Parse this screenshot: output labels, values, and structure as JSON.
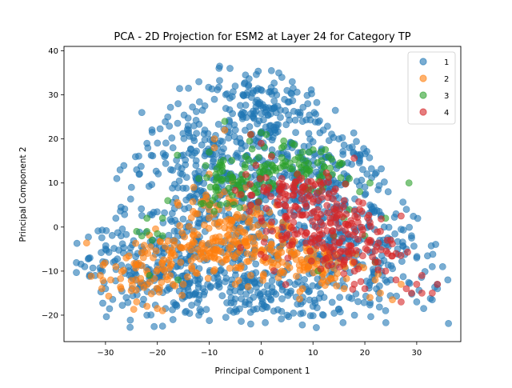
{
  "chart_data": {
    "type": "scatter",
    "title": "PCA - 2D Projection for ESM2 at Layer 24 for Category TP",
    "xlabel": "Principal Component 1",
    "ylabel": "Principal Component 2",
    "xlim": [
      -38,
      38.5
    ],
    "ylim": [
      -26,
      41
    ],
    "xticks": [
      -30,
      -20,
      -10,
      0,
      10,
      20,
      30
    ],
    "xtick_labels": [
      "−30",
      "−20",
      "−10",
      "0",
      "10",
      "20",
      "30"
    ],
    "yticks": [
      -20,
      -10,
      0,
      10,
      20,
      30,
      40
    ],
    "ytick_labels": [
      "−20",
      "−10",
      "0",
      "10",
      "20",
      "30",
      "40"
    ],
    "grid": false,
    "legend_position": "top-right",
    "series": [
      {
        "name": "1",
        "color": "#1f77b4",
        "blobs": [
          {
            "cx": -2,
            "cy": 0,
            "sx": 14,
            "sy": 11,
            "n": 560
          },
          {
            "cx": 0,
            "cy": 26,
            "sx": 6,
            "sy": 5,
            "n": 160
          },
          {
            "cx": -22,
            "cy": -10,
            "sx": 7,
            "sy": 5,
            "n": 140
          },
          {
            "cx": 20,
            "cy": -6,
            "sx": 8,
            "sy": 6,
            "n": 140
          },
          {
            "cx": -10,
            "cy": 14,
            "sx": 8,
            "sy": 6,
            "n": 120
          },
          {
            "cx": 14,
            "cy": 12,
            "sx": 8,
            "sy": 6,
            "n": 120
          },
          {
            "cx": 0,
            "cy": -15,
            "sx": 11,
            "sy": 3,
            "n": 120
          }
        ],
        "points": [
          [
            -35.5,
            -3.7
          ],
          [
            -33,
            -7
          ],
          [
            -30,
            -5
          ],
          [
            -27,
            4.5
          ],
          [
            -28,
            2
          ],
          [
            -24,
            13
          ],
          [
            -22,
            19
          ],
          [
            -21,
            21.5
          ],
          [
            -23,
            26
          ],
          [
            -18,
            25
          ],
          [
            -14,
            31.5
          ],
          [
            -12,
            33
          ],
          [
            -8,
            36.5
          ],
          [
            -6,
            36
          ],
          [
            -3,
            34.5
          ],
          [
            2,
            35.5
          ],
          [
            4,
            34
          ],
          [
            6,
            33
          ],
          [
            9,
            28
          ],
          [
            12,
            22
          ],
          [
            15,
            20
          ],
          [
            19,
            15
          ],
          [
            22,
            12
          ],
          [
            24.5,
            8
          ],
          [
            26,
            3
          ],
          [
            27,
            -0.5
          ],
          [
            28,
            -5
          ],
          [
            30,
            -7
          ],
          [
            33,
            -9
          ],
          [
            35,
            -9
          ],
          [
            36,
            -12
          ],
          [
            34,
            -14
          ],
          [
            33,
            -16.5
          ],
          [
            30,
            -17
          ],
          [
            24,
            -19
          ],
          [
            18,
            -20
          ],
          [
            12,
            -20
          ],
          [
            5,
            -20
          ],
          [
            -2,
            -22
          ],
          [
            -6,
            -19
          ],
          [
            -12,
            -20
          ],
          [
            -17,
            -21
          ],
          [
            -19,
            -22.5
          ],
          [
            -22,
            -20
          ],
          [
            -26,
            -16
          ],
          [
            -30,
            -14
          ],
          [
            -32,
            -11
          ],
          [
            -34,
            -9
          ],
          [
            -14,
            22
          ],
          [
            -17,
            18
          ],
          [
            5,
            31
          ],
          [
            8,
            24
          ],
          [
            -5,
            32
          ],
          [
            17,
            18
          ],
          [
            21,
            5
          ],
          [
            -25,
            9
          ],
          [
            -27,
            -2
          ],
          [
            -20,
            -14
          ],
          [
            10,
            -18
          ],
          [
            25,
            -12
          ],
          [
            -9,
            29
          ],
          [
            3,
            30
          ],
          [
            -30,
            -8
          ],
          [
            29,
            -2
          ],
          [
            -16,
            28
          ]
        ]
      },
      {
        "name": "2",
        "color": "#ff7f0e",
        "blobs": [
          {
            "cx": -5,
            "cy": -4,
            "sx": 5,
            "sy": 3.5,
            "n": 110
          },
          {
            "cx": -22,
            "cy": -10,
            "sx": 4.5,
            "sy": 4,
            "n": 70
          },
          {
            "cx": -13,
            "cy": -5,
            "sx": 3,
            "sy": 2.5,
            "n": 45
          },
          {
            "cx": -7,
            "cy": 4,
            "sx": 3.5,
            "sy": 3,
            "n": 45
          },
          {
            "cx": 6,
            "cy": -7,
            "sx": 5,
            "sy": 3,
            "n": 60
          },
          {
            "cx": 14,
            "cy": -10,
            "sx": 4,
            "sy": 3,
            "n": 35
          }
        ],
        "points": [
          [
            -31,
            -11
          ],
          [
            -29,
            -12
          ],
          [
            -27,
            -14
          ],
          [
            -24,
            -17
          ],
          [
            -22,
            -18
          ],
          [
            -20,
            -18.5
          ],
          [
            -19,
            -19
          ],
          [
            -26,
            -7
          ],
          [
            -28,
            -9
          ],
          [
            -17,
            -13
          ],
          [
            -9,
            20
          ],
          [
            -9,
            18
          ],
          [
            -7,
            22
          ],
          [
            -10,
            12
          ],
          [
            -13,
            9
          ],
          [
            -11,
            6
          ],
          [
            2,
            0
          ],
          [
            3,
            5
          ],
          [
            6,
            -3
          ],
          [
            10,
            -8
          ],
          [
            12,
            -12
          ],
          [
            16,
            -14
          ],
          [
            19,
            -9
          ],
          [
            22,
            -12
          ],
          [
            23,
            -15
          ],
          [
            27,
            -13
          ],
          [
            21,
            -16
          ],
          [
            17,
            -6
          ],
          [
            8,
            -14
          ],
          [
            -2,
            -11
          ],
          [
            -5,
            -13
          ],
          [
            -15,
            -13
          ],
          [
            -3,
            9
          ],
          [
            -16,
            5
          ],
          [
            4,
            -10
          ]
        ]
      },
      {
        "name": "3",
        "color": "#2ca02c",
        "blobs": [
          {
            "cx": -6,
            "cy": 10,
            "sx": 3,
            "sy": 3,
            "n": 55
          },
          {
            "cx": 2,
            "cy": 14,
            "sx": 4,
            "sy": 3,
            "n": 55
          },
          {
            "cx": 10,
            "cy": 13,
            "sx": 4,
            "sy": 3,
            "n": 35
          }
        ],
        "points": [
          [
            -22,
            -1
          ],
          [
            -23,
            -2
          ],
          [
            -21,
            -3
          ],
          [
            -22,
            2
          ],
          [
            -20,
            -1.5
          ],
          [
            -19,
            -2
          ],
          [
            -24,
            -1
          ],
          [
            -19,
            2
          ],
          [
            -21.5,
            -11
          ],
          [
            -16,
            -12
          ],
          [
            -18,
            6
          ],
          [
            28.5,
            10
          ],
          [
            21,
            10
          ],
          [
            19,
            8
          ],
          [
            20,
            -2
          ],
          [
            24,
            2
          ],
          [
            14,
            -2
          ],
          [
            16,
            2
          ],
          [
            17,
            4
          ],
          [
            -7,
            24
          ],
          [
            -2,
            21
          ],
          [
            1,
            21
          ],
          [
            4,
            18
          ],
          [
            6,
            19
          ],
          [
            8,
            17
          ],
          [
            13,
            16
          ],
          [
            15,
            14
          ],
          [
            17,
            11
          ],
          [
            -10,
            17
          ],
          [
            -12,
            11
          ],
          [
            11,
            -10
          ],
          [
            22,
            -8
          ],
          [
            -3,
            16
          ],
          [
            0,
            11
          ],
          [
            -8,
            14
          ]
        ]
      },
      {
        "name": "4",
        "color": "#d62728",
        "blobs": [
          {
            "cx": 10,
            "cy": 2,
            "sx": 5,
            "sy": 5,
            "n": 130
          },
          {
            "cx": 17,
            "cy": -4,
            "sx": 4,
            "sy": 4,
            "n": 80
          },
          {
            "cx": 3,
            "cy": 8,
            "sx": 4,
            "sy": 3,
            "n": 40
          }
        ],
        "points": [
          [
            -2,
            21
          ],
          [
            0,
            19
          ],
          [
            2,
            16
          ],
          [
            -1,
            14
          ],
          [
            4,
            11
          ],
          [
            7,
            12
          ],
          [
            8,
            9
          ],
          [
            12,
            10
          ],
          [
            14,
            8
          ],
          [
            16,
            6
          ],
          [
            19,
            4
          ],
          [
            21,
            1
          ],
          [
            23,
            -1
          ],
          [
            25,
            -3
          ],
          [
            27,
            2.5
          ],
          [
            26,
            -6
          ],
          [
            24,
            -10
          ],
          [
            26,
            -12
          ],
          [
            28,
            -14
          ],
          [
            29,
            -15
          ],
          [
            31,
            -15
          ],
          [
            33,
            -15
          ],
          [
            34,
            -13
          ],
          [
            30,
            -13
          ],
          [
            27,
            -17
          ],
          [
            31,
            -11
          ],
          [
            20,
            -14
          ],
          [
            18,
            -10
          ],
          [
            22,
            -8
          ],
          [
            6,
            -4
          ],
          [
            4,
            -2
          ],
          [
            0,
            2
          ],
          [
            -2,
            5
          ],
          [
            1,
            -1
          ]
        ]
      }
    ]
  }
}
